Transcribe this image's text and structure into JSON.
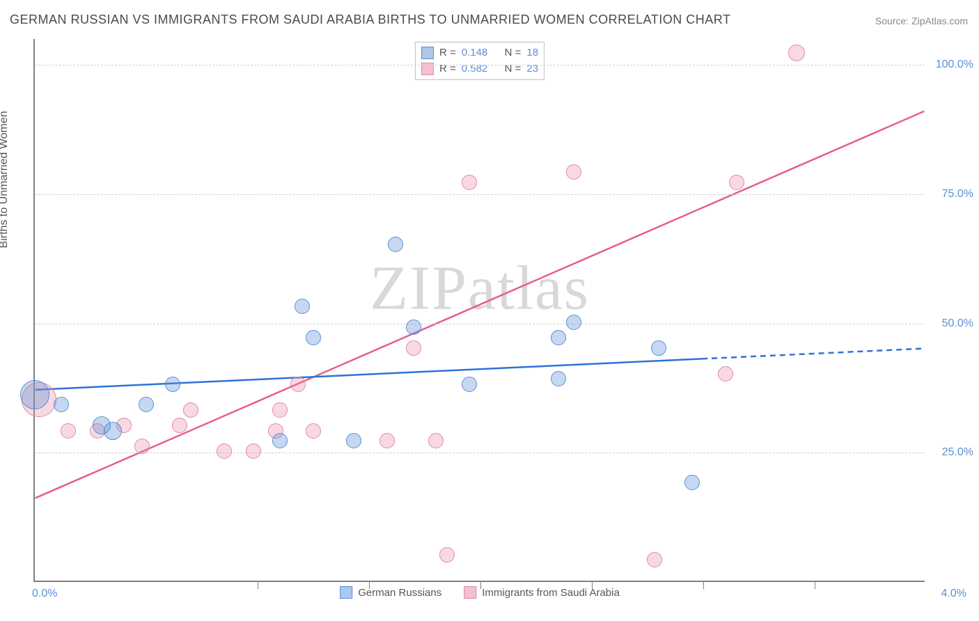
{
  "title": "GERMAN RUSSIAN VS IMMIGRANTS FROM SAUDI ARABIA BIRTHS TO UNMARRIED WOMEN CORRELATION CHART",
  "source": "Source: ZipAtlas.com",
  "y_axis_label": "Births to Unmarried Women",
  "watermark": "ZIPatlas",
  "chart": {
    "type": "scatter",
    "xlim": [
      0,
      4
    ],
    "ylim": [
      0,
      105
    ],
    "x_tick_labels": {
      "min": "0.0%",
      "max": "4.0%"
    },
    "x_tick_positions": [
      1.0,
      1.5,
      2.0,
      2.5,
      3.0,
      3.5
    ],
    "y_ticks": [
      {
        "v": 25,
        "label": "25.0%"
      },
      {
        "v": 50,
        "label": "50.0%"
      },
      {
        "v": 75,
        "label": "75.0%"
      },
      {
        "v": 100,
        "label": "100.0%"
      }
    ],
    "grid_color": "#d0d0d0",
    "axis_color": "#808080",
    "background_color": "#ffffff",
    "label_color": "#5b8fd6"
  },
  "series": {
    "blue": {
      "label": "German Russians",
      "legend_r_label": "R = ",
      "legend_n_label": "N = ",
      "r": "0.148",
      "n": "18",
      "fill": "rgba(91,143,214,0.35)",
      "stroke": "#5b8fd6",
      "marker_radius": 10,
      "trend": {
        "x1": 0,
        "y1": 37,
        "x2": 3.0,
        "y2": 43,
        "x3": 4.0,
        "y3": 45,
        "solid_until": 3.0,
        "color": "#2d72d9",
        "width": 2.5
      },
      "points": [
        {
          "x": 0.0,
          "y": 36,
          "r": 20
        },
        {
          "x": 0.12,
          "y": 34,
          "r": 10
        },
        {
          "x": 0.3,
          "y": 30,
          "r": 12
        },
        {
          "x": 0.35,
          "y": 29,
          "r": 12
        },
        {
          "x": 0.5,
          "y": 34,
          "r": 10
        },
        {
          "x": 0.62,
          "y": 38,
          "r": 10
        },
        {
          "x": 1.1,
          "y": 27,
          "r": 10
        },
        {
          "x": 1.2,
          "y": 53,
          "r": 10
        },
        {
          "x": 1.25,
          "y": 47,
          "r": 10
        },
        {
          "x": 1.43,
          "y": 27,
          "r": 10
        },
        {
          "x": 1.62,
          "y": 65,
          "r": 10
        },
        {
          "x": 1.7,
          "y": 49,
          "r": 10
        },
        {
          "x": 1.95,
          "y": 38,
          "r": 10
        },
        {
          "x": 2.35,
          "y": 39,
          "r": 10
        },
        {
          "x": 2.35,
          "y": 47,
          "r": 10
        },
        {
          "x": 2.42,
          "y": 50,
          "r": 10
        },
        {
          "x": 2.8,
          "y": 45,
          "r": 10
        },
        {
          "x": 2.95,
          "y": 19,
          "r": 10
        }
      ]
    },
    "pink": {
      "label": "Immigrants from Saudi Arabia",
      "legend_r_label": "R = ",
      "legend_n_label": "N = ",
      "r": "0.582",
      "n": "23",
      "fill": "rgba(232,130,160,0.3)",
      "stroke": "#e18aa5",
      "marker_radius": 10,
      "trend": {
        "x1": 0,
        "y1": 16,
        "x2": 4.0,
        "y2": 91,
        "color": "#e75d8a",
        "width": 2.5
      },
      "points": [
        {
          "x": 0.02,
          "y": 35,
          "r": 24
        },
        {
          "x": 0.15,
          "y": 29,
          "r": 10
        },
        {
          "x": 0.28,
          "y": 29,
          "r": 10
        },
        {
          "x": 0.4,
          "y": 30,
          "r": 10
        },
        {
          "x": 0.48,
          "y": 26,
          "r": 10
        },
        {
          "x": 0.65,
          "y": 30,
          "r": 10
        },
        {
          "x": 0.7,
          "y": 33,
          "r": 10
        },
        {
          "x": 0.85,
          "y": 25,
          "r": 10
        },
        {
          "x": 0.98,
          "y": 25,
          "r": 10
        },
        {
          "x": 1.08,
          "y": 29,
          "r": 10
        },
        {
          "x": 1.1,
          "y": 33,
          "r": 10
        },
        {
          "x": 1.18,
          "y": 38,
          "r": 10
        },
        {
          "x": 1.25,
          "y": 29,
          "r": 10
        },
        {
          "x": 1.58,
          "y": 27,
          "r": 10
        },
        {
          "x": 1.7,
          "y": 45,
          "r": 10
        },
        {
          "x": 1.8,
          "y": 27,
          "r": 10
        },
        {
          "x": 1.85,
          "y": 5,
          "r": 10
        },
        {
          "x": 1.95,
          "y": 77,
          "r": 10
        },
        {
          "x": 2.42,
          "y": 79,
          "r": 10
        },
        {
          "x": 2.78,
          "y": 4,
          "r": 10
        },
        {
          "x": 3.15,
          "y": 77,
          "r": 10
        },
        {
          "x": 3.42,
          "y": 102,
          "r": 11
        },
        {
          "x": 3.1,
          "y": 40,
          "r": 10
        }
      ]
    }
  },
  "legend_bottom": {
    "items": [
      "German Russians",
      "Immigrants from Saudi Arabia"
    ]
  }
}
